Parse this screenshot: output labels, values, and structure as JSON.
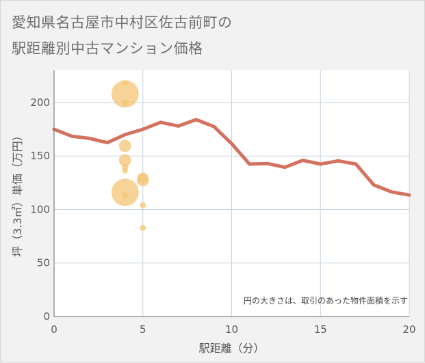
{
  "title_line1": "愛知県名古屋市中村区佐古前町の",
  "title_line2": "駅距離別中古マンション価格",
  "chart_data": {
    "type": "scatter",
    "xlabel": "駅距離（分）",
    "ylabel": "坪（3.3㎡）単価（万円）",
    "xlim": [
      0,
      20
    ],
    "ylim": [
      0,
      230
    ],
    "x_ticks": [
      0,
      5,
      10,
      15,
      20
    ],
    "y_ticks": [
      0,
      50,
      100,
      150,
      200
    ],
    "grid": true,
    "note": "円の大きさは、取引のあった物件面積を示す",
    "colors": {
      "line": "#d4725f",
      "bubble": "#f5c67a",
      "grid": "#c5d3e0"
    },
    "series": [
      {
        "type": "line",
        "x": [
          0,
          1,
          2,
          3,
          4,
          5,
          6,
          7,
          8,
          9,
          10,
          11,
          12,
          13,
          14,
          15,
          16,
          17,
          18,
          19,
          20
        ],
        "y": [
          175,
          168.5,
          166.5,
          162.5,
          170,
          175,
          181.5,
          178,
          184,
          177.5,
          161.5,
          142.5,
          143,
          139.5,
          146,
          142.5,
          145.5,
          142.5,
          123,
          116.5,
          113.5
        ]
      },
      {
        "type": "bubble",
        "points": [
          {
            "x": 4,
            "y": 218,
            "size": 4
          },
          {
            "x": 4,
            "y": 208,
            "size": 20
          },
          {
            "x": 4,
            "y": 200,
            "size": 5
          },
          {
            "x": 4,
            "y": 159.5,
            "size": 9
          },
          {
            "x": 4,
            "y": 146,
            "size": 9
          },
          {
            "x": 4,
            "y": 139.5,
            "size": 5
          },
          {
            "x": 4,
            "y": 136,
            "size": 4
          },
          {
            "x": 4,
            "y": 116,
            "size": 20
          },
          {
            "x": 4,
            "y": 113,
            "size": 5
          },
          {
            "x": 5,
            "y": 129.5,
            "size": 8
          },
          {
            "x": 5,
            "y": 127.5,
            "size": 9
          },
          {
            "x": 5,
            "y": 104,
            "size": 4.5
          },
          {
            "x": 5,
            "y": 83,
            "size": 4.5
          }
        ]
      }
    ]
  }
}
